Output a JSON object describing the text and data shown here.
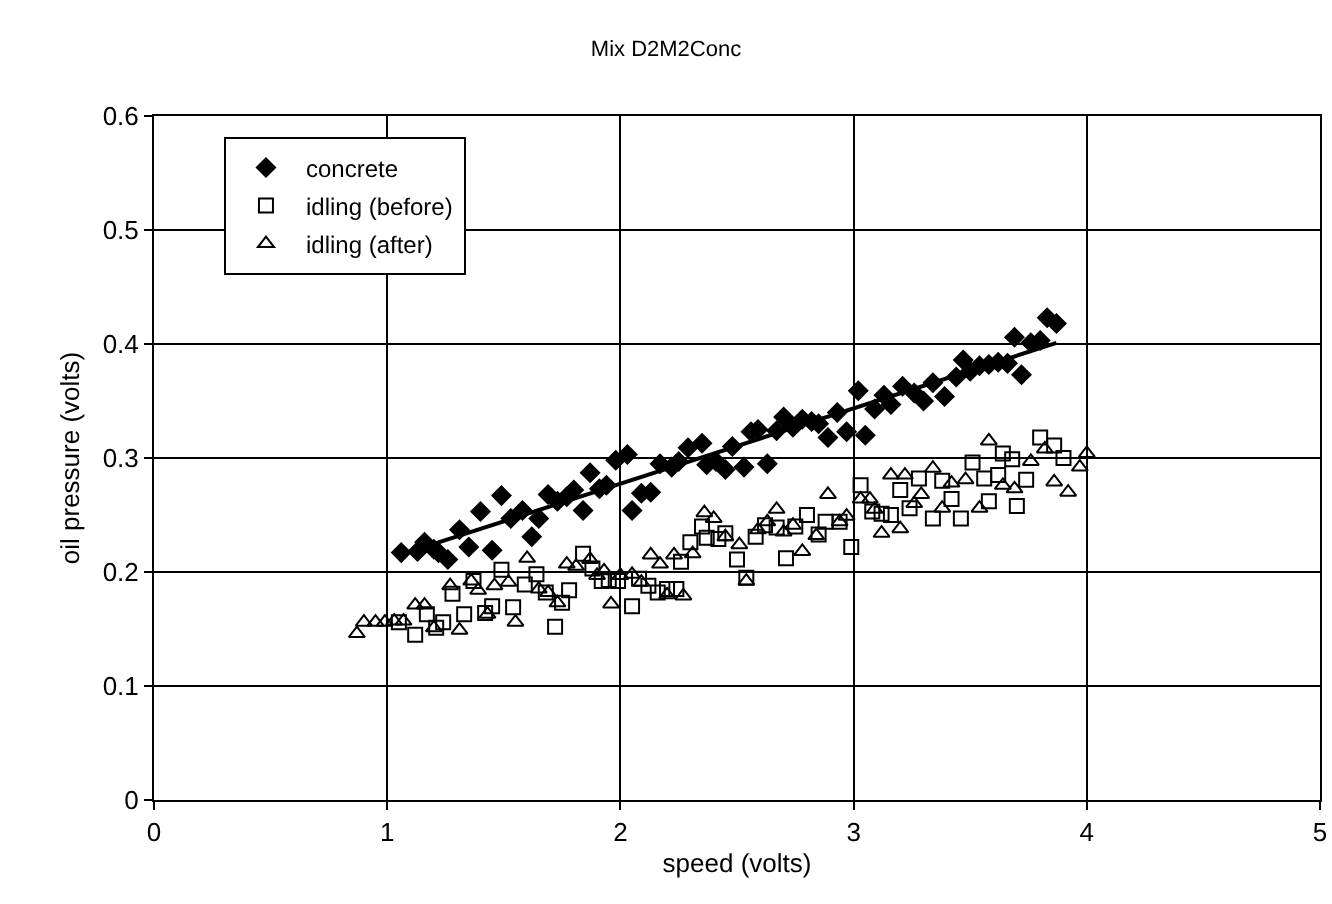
{
  "chart_data": {
    "type": "scatter",
    "title": "Mix D2M2Conc",
    "xlabel": "speed (volts)",
    "ylabel": "oil pressure (volts)",
    "xlim": [
      0,
      5
    ],
    "xticks": [
      0,
      1,
      2,
      3,
      4,
      5
    ],
    "ylim": [
      0,
      0.6
    ],
    "yticks": [
      0,
      0.1,
      0.2,
      0.3,
      0.4,
      0.5,
      0.6
    ],
    "grid": true,
    "legend": "top left",
    "series": [
      {
        "name": "concrete",
        "color": "#000000",
        "marker": "diamond",
        "x": [
          1.06,
          1.13,
          1.16,
          1.2,
          1.22,
          1.26,
          1.31,
          1.35,
          1.4,
          1.45,
          1.49,
          1.53,
          1.58,
          1.62,
          1.65,
          1.69,
          1.73,
          1.77,
          1.8,
          1.84,
          1.87,
          1.91,
          1.94,
          1.98,
          2.03,
          2.05,
          2.09,
          2.13,
          2.17,
          2.22,
          2.25,
          2.29,
          2.35,
          2.37,
          2.41,
          2.45,
          2.48,
          2.53,
          2.56,
          2.59,
          2.63,
          2.67,
          2.7,
          2.74,
          2.78,
          2.82,
          2.85,
          2.89,
          2.93,
          2.97,
          3.02,
          3.05,
          3.09,
          3.13,
          3.16,
          3.21,
          3.26,
          3.3,
          3.34,
          3.39,
          3.44,
          3.47,
          3.5,
          3.54,
          3.58,
          3.62,
          3.66,
          3.69,
          3.72,
          3.76,
          3.8,
          3.83,
          3.87
        ],
        "values": [
          0.217,
          0.218,
          0.226,
          0.22,
          0.217,
          0.211,
          0.237,
          0.222,
          0.253,
          0.219,
          0.267,
          0.247,
          0.254,
          0.231,
          0.247,
          0.268,
          0.262,
          0.266,
          0.272,
          0.254,
          0.287,
          0.273,
          0.276,
          0.298,
          0.303,
          0.254,
          0.269,
          0.27,
          0.295,
          0.292,
          0.297,
          0.309,
          0.313,
          0.294,
          0.297,
          0.29,
          0.31,
          0.292,
          0.323,
          0.325,
          0.295,
          0.324,
          0.336,
          0.327,
          0.334,
          0.332,
          0.33,
          0.318,
          0.34,
          0.323,
          0.359,
          0.32,
          0.343,
          0.355,
          0.347,
          0.363,
          0.357,
          0.35,
          0.366,
          0.354,
          0.371,
          0.386,
          0.376,
          0.381,
          0.382,
          0.384,
          0.383,
          0.406,
          0.373,
          0.401,
          0.403,
          0.423,
          0.418
        ]
      },
      {
        "name": "idling (before)",
        "color": "#000000",
        "marker": "square",
        "x": [
          1.05,
          1.12,
          1.17,
          1.21,
          1.24,
          1.28,
          1.33,
          1.37,
          1.42,
          1.45,
          1.49,
          1.54,
          1.59,
          1.64,
          1.68,
          1.72,
          1.75,
          1.78,
          1.84,
          1.88,
          1.92,
          1.95,
          1.99,
          2.05,
          2.08,
          2.12,
          2.16,
          2.2,
          2.24,
          2.26,
          2.3,
          2.35,
          2.37,
          2.42,
          2.45,
          2.5,
          2.54,
          2.58,
          2.62,
          2.67,
          2.71,
          2.75,
          2.8,
          2.85,
          2.88,
          2.94,
          2.99,
          3.03,
          3.08,
          3.12,
          3.16,
          3.2,
          3.24,
          3.28,
          3.34,
          3.38,
          3.42,
          3.46,
          3.51,
          3.56,
          3.58,
          3.62,
          3.64,
          3.68,
          3.7,
          3.74,
          3.8,
          3.86,
          3.9
        ],
        "values": [
          0.156,
          0.145,
          0.163,
          0.151,
          0.156,
          0.181,
          0.163,
          0.192,
          0.164,
          0.17,
          0.202,
          0.169,
          0.189,
          0.198,
          0.182,
          0.152,
          0.173,
          0.184,
          0.216,
          0.203,
          0.192,
          0.193,
          0.192,
          0.17,
          0.194,
          0.188,
          0.182,
          0.185,
          0.185,
          0.209,
          0.226,
          0.24,
          0.23,
          0.229,
          0.234,
          0.211,
          0.195,
          0.231,
          0.241,
          0.239,
          0.212,
          0.24,
          0.25,
          0.233,
          0.244,
          0.244,
          0.222,
          0.276,
          0.253,
          0.251,
          0.25,
          0.272,
          0.256,
          0.282,
          0.247,
          0.28,
          0.264,
          0.247,
          0.296,
          0.282,
          0.262,
          0.285,
          0.304,
          0.299,
          0.258,
          0.281,
          0.318,
          0.311,
          0.3
        ]
      },
      {
        "name": "idling (after)",
        "color": "#000000",
        "marker": "triangle",
        "x": [
          0.87,
          0.9,
          0.95,
          0.99,
          1.03,
          1.07,
          1.12,
          1.16,
          1.2,
          1.27,
          1.31,
          1.36,
          1.39,
          1.43,
          1.46,
          1.52,
          1.55,
          1.6,
          1.65,
          1.69,
          1.73,
          1.77,
          1.81,
          1.87,
          1.9,
          1.93,
          1.96,
          2.0,
          2.05,
          2.09,
          2.13,
          2.17,
          2.2,
          2.23,
          2.27,
          2.31,
          2.36,
          2.4,
          2.45,
          2.51,
          2.54,
          2.59,
          2.63,
          2.67,
          2.7,
          2.74,
          2.78,
          2.84,
          2.89,
          2.94,
          2.97,
          3.03,
          3.07,
          3.09,
          3.12,
          3.16,
          3.2,
          3.22,
          3.26,
          3.29,
          3.34,
          3.38,
          3.42,
          3.48,
          3.54,
          3.58,
          3.64,
          3.69,
          3.76,
          3.82,
          3.86,
          3.92,
          3.97,
          4.0
        ],
        "values": [
          0.146,
          0.156,
          0.156,
          0.156,
          0.157,
          0.157,
          0.171,
          0.171,
          0.151,
          0.188,
          0.149,
          0.192,
          0.184,
          0.163,
          0.188,
          0.191,
          0.156,
          0.212,
          0.185,
          0.182,
          0.173,
          0.207,
          0.205,
          0.211,
          0.197,
          0.201,
          0.172,
          0.197,
          0.198,
          0.191,
          0.215,
          0.207,
          0.18,
          0.215,
          0.179,
          0.216,
          0.252,
          0.247,
          0.231,
          0.224,
          0.192,
          0.237,
          0.244,
          0.255,
          0.235,
          0.241,
          0.218,
          0.232,
          0.268,
          0.244,
          0.249,
          0.264,
          0.264,
          0.255,
          0.234,
          0.285,
          0.238,
          0.285,
          0.26,
          0.268,
          0.291,
          0.256,
          0.278,
          0.281,
          0.256,
          0.315,
          0.276,
          0.273,
          0.297,
          0.308,
          0.279,
          0.27,
          0.292,
          0.304
        ]
      },
      {
        "type": "line",
        "color": "#000000",
        "x": [
          1.13,
          3.87
        ],
        "values": [
          0.22,
          0.401
        ]
      }
    ]
  }
}
